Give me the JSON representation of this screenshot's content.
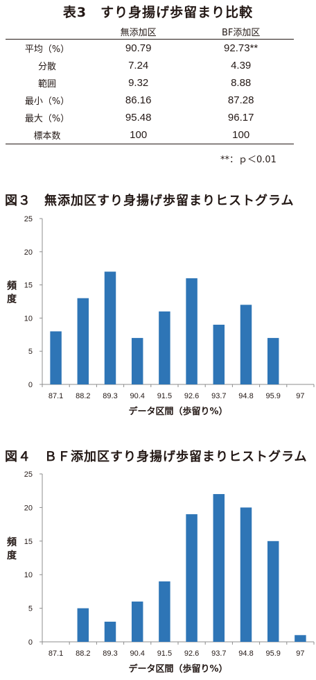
{
  "table": {
    "title": "表3　すり身揚げ歩留まり比較",
    "columns": [
      "",
      "無添加区",
      "BF添加区"
    ],
    "rows": [
      {
        "label": "平均（%）",
        "a": "90.79",
        "b": "92.73**"
      },
      {
        "label": "分散",
        "a": "7.24",
        "b": "4.39"
      },
      {
        "label": "範囲",
        "a": "9.32",
        "b": "8.88"
      },
      {
        "label": "最小（%）",
        "a": "86.16",
        "b": "87.28"
      },
      {
        "label": "最大（%）",
        "a": "95.48",
        "b": "96.17"
      },
      {
        "label": "標本数",
        "a": "100",
        "b": "100"
      }
    ],
    "footnote": "**：ｐ＜0.01"
  },
  "chart_data": [
    {
      "type": "bar",
      "title": "図３　無添加区すり身揚げ歩留まりヒストグラム",
      "xlabel": "データ区間（歩留り%）",
      "ylabel": "頻度",
      "categories": [
        "87.1",
        "88.2",
        "89.3",
        "90.4",
        "91.5",
        "92.6",
        "93.7",
        "94.8",
        "95.9",
        "97"
      ],
      "values": [
        8,
        13,
        17,
        7,
        11,
        16,
        9,
        12,
        7,
        0
      ],
      "ylim": [
        0,
        25
      ],
      "yticks": [
        0,
        5,
        10,
        15,
        20,
        25
      ],
      "color": "#2e75b6",
      "grid": false
    },
    {
      "type": "bar",
      "title": "図４　ＢＦ添加区すり身揚げ歩留まりヒストグラム",
      "xlabel": "データ区間（歩留り%）",
      "ylabel": "頻度",
      "categories": [
        "87.1",
        "88.2",
        "89.3",
        "90.4",
        "91.5",
        "92.6",
        "93.7",
        "94.8",
        "95.9",
        "97"
      ],
      "values": [
        0,
        5,
        3,
        6,
        9,
        19,
        22,
        20,
        15,
        1
      ],
      "ylim": [
        0,
        25
      ],
      "yticks": [
        0,
        5,
        10,
        15,
        20,
        25
      ],
      "color": "#2e75b6",
      "grid": false
    }
  ]
}
